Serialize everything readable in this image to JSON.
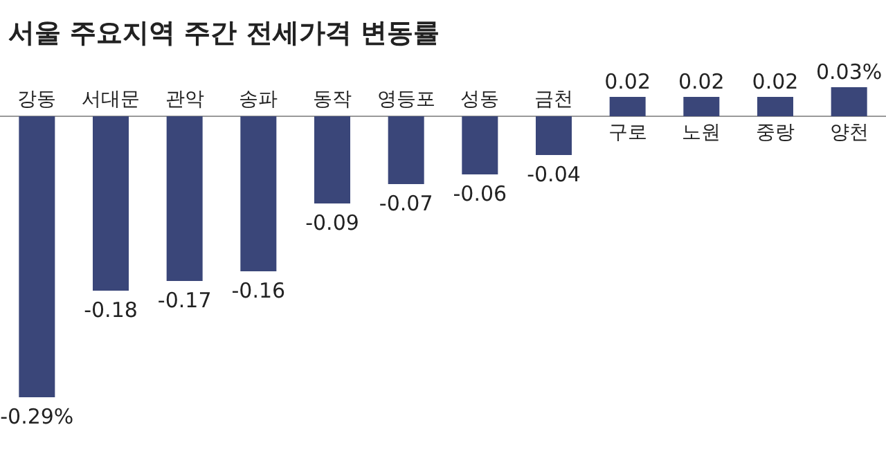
{
  "chart_data": {
    "type": "bar",
    "title": "서울 주요지역 주간 전세가격 변동률",
    "categories": [
      "강동",
      "서대문",
      "관악",
      "송파",
      "동작",
      "영등포",
      "성동",
      "금천",
      "구로",
      "노원",
      "중랑",
      "양천"
    ],
    "values": [
      -0.29,
      -0.18,
      -0.17,
      -0.16,
      -0.09,
      -0.07,
      -0.06,
      -0.04,
      0.02,
      0.02,
      0.02,
      0.03
    ],
    "value_labels": [
      "-0.29%",
      "-0.18",
      "-0.17",
      "-0.16",
      "-0.09",
      "-0.07",
      "-0.06",
      "-0.04",
      "0.02",
      "0.02",
      "0.02",
      "0.03%"
    ],
    "color": "#3a4679"
  }
}
